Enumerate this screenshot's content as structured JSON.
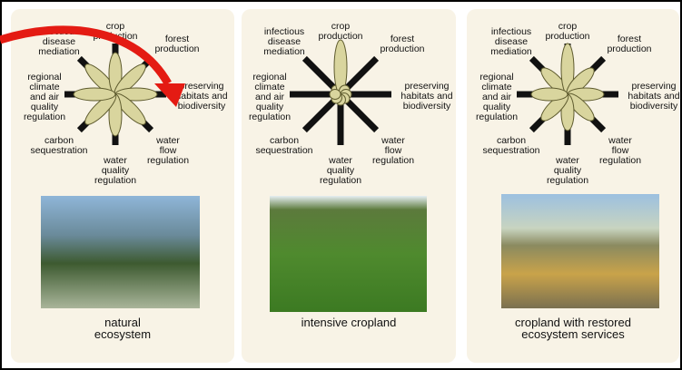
{
  "panels": [
    {
      "labels": [
        [
          "infectious",
          "disease",
          "mediation"
        ],
        [
          "crop",
          "production"
        ],
        [
          "forest",
          "production"
        ],
        [
          "preserving",
          "habitats and",
          "biodiversity"
        ],
        [
          "water",
          "flow",
          "regulation"
        ],
        [
          "water",
          "quality",
          "regulation"
        ],
        [
          "carbon",
          "sequestration"
        ],
        [
          "regional",
          "climate",
          "and air",
          "quality",
          "regulation"
        ]
      ],
      "caption": [
        "natural",
        "ecosystem"
      ]
    },
    {
      "labels": [
        [
          "infectious",
          "disease",
          "mediation"
        ],
        [
          "crop",
          "production"
        ],
        [
          "forest",
          "production"
        ],
        [
          "preserving",
          "habitats and",
          "biodiversity"
        ],
        [
          "water",
          "flow",
          "regulation"
        ],
        [
          "water",
          "quality",
          "regulation"
        ],
        [
          "carbon",
          "sequestration"
        ],
        [
          "regional",
          "climate",
          "and air",
          "quality",
          "regulation"
        ]
      ],
      "caption": [
        "intensive cropland"
      ]
    },
    {
      "labels": [
        [
          "infectious",
          "disease",
          "mediation"
        ],
        [
          "crop",
          "production"
        ],
        [
          "forest",
          "production"
        ],
        [
          "preserving",
          "habitats and",
          "biodiversity"
        ],
        [
          "water",
          "flow",
          "regulation"
        ],
        [
          "water",
          "quality",
          "regulation"
        ],
        [
          "carbon",
          "sequestration"
        ],
        [
          "regional",
          "climate",
          "and air",
          "quality",
          "regulation"
        ]
      ],
      "caption": [
        "cropland with restored",
        "ecosystem services"
      ]
    }
  ]
}
